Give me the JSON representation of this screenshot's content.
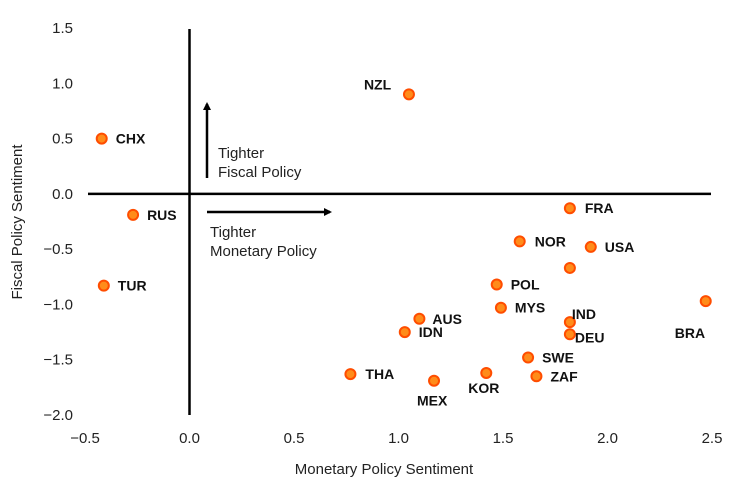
{
  "chart_data": {
    "type": "scatter",
    "xlabel": "Monetary Policy Sentiment",
    "ylabel": "Fiscal Policy Sentiment",
    "xlim": [
      -0.5,
      2.5
    ],
    "ylim": [
      -2.0,
      1.5
    ],
    "xticks": [
      "-0.5",
      "0.0",
      "0.5",
      "1.0",
      "1.5",
      "2.0",
      "2.5"
    ],
    "yticks": [
      "1.5",
      "1.0",
      "0.5",
      "0.0",
      "-0.5",
      "-1.0",
      "-1.5",
      "-2.0"
    ],
    "grid": false,
    "marker_color": "#ff4d00",
    "marker_fill": "#ff8c1a",
    "points": [
      {
        "label": "NZL",
        "x": 1.05,
        "y": 0.9
      },
      {
        "label": "CHX",
        "x": -0.42,
        "y": 0.5
      },
      {
        "label": "RUS",
        "x": -0.27,
        "y": -0.19
      },
      {
        "label": "TUR",
        "x": -0.41,
        "y": -0.83
      },
      {
        "label": "FRA",
        "x": 1.82,
        "y": -0.13
      },
      {
        "label": "NOR",
        "x": 1.58,
        "y": -0.43
      },
      {
        "label": "USA",
        "x": 1.92,
        "y": -0.48
      },
      {
        "label": "POL",
        "x": 1.47,
        "y": -0.82
      },
      {
        "label": "MYS",
        "x": 1.49,
        "y": -1.03
      },
      {
        "label": "IND",
        "x": 1.82,
        "y": -1.16
      },
      {
        "label": "DEU",
        "x": 1.82,
        "y": -1.27
      },
      {
        "label": "BRA",
        "x": 2.47,
        "y": -0.97
      },
      {
        "label": "AUS",
        "x": 1.1,
        "y": -1.13
      },
      {
        "label": "IDN",
        "x": 1.03,
        "y": -1.25
      },
      {
        "label": "SWE",
        "x": 1.62,
        "y": -1.48
      },
      {
        "label": "ZAF",
        "x": 1.66,
        "y": -1.65
      },
      {
        "label": "KOR",
        "x": 1.42,
        "y": -1.62
      },
      {
        "label": "THA",
        "x": 0.77,
        "y": -1.63
      },
      {
        "label": "MEX",
        "x": 1.17,
        "y": -1.69
      },
      {
        "label": "",
        "x": 1.82,
        "y": -0.67
      }
    ],
    "annotations": {
      "fiscal": [
        "Tighter",
        "Fiscal Policy"
      ],
      "monetary": [
        "Tighter",
        "Monetary Policy"
      ]
    }
  }
}
